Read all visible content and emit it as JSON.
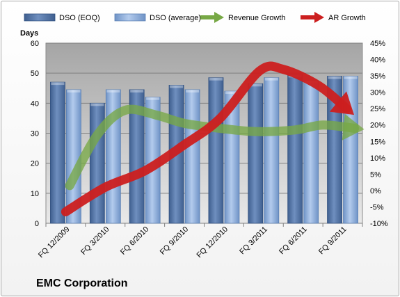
{
  "chart_data": {
    "type": "bar",
    "categories": [
      "FQ 12/2009",
      "FQ 3/2010",
      "FQ 6/2010",
      "FQ 9/2010",
      "FQ 12/2010",
      "FQ 3/2011",
      "FQ 6/2011",
      "FQ 9/2011"
    ],
    "ylabel": "Days",
    "ylim": [
      0,
      60
    ],
    "y_ticks": [
      "0",
      "10",
      "20",
      "30",
      "40",
      "50",
      "60"
    ],
    "y2lim": [
      -10,
      45
    ],
    "y2_ticks": [
      "-10%",
      "-5%",
      "0%",
      "5%",
      "10%",
      "15%",
      "20%",
      "25%",
      "30%",
      "35%",
      "40%",
      "45%"
    ],
    "legend_position": "top",
    "grid": true,
    "series": [
      {
        "name": "DSO (EOQ)",
        "kind": "bar",
        "axis": "left",
        "color": "#4f6f9f",
        "values": [
          47,
          40,
          44.5,
          46,
          48.5,
          46.5,
          49.5,
          49
        ]
      },
      {
        "name": "DSO (average)",
        "kind": "bar",
        "axis": "left",
        "color": "#8fb0dd",
        "values": [
          44.5,
          44.5,
          42,
          44.5,
          44,
          48.5,
          47.5,
          49
        ]
      },
      {
        "name": "Revenue Growth",
        "kind": "arrow-line",
        "axis": "right",
        "color": "#77a845",
        "x": [
          0.1,
          0.8,
          1.5,
          2.3,
          3.0,
          3.9,
          4.8,
          5.8,
          6.5,
          7.3
        ],
        "values": [
          1.5,
          17,
          24.5,
          23,
          20.5,
          19,
          18,
          18.5,
          20,
          19
        ]
      },
      {
        "name": "AR Growth",
        "kind": "arrow-line",
        "axis": "right",
        "color": "#cc1f1f",
        "x": [
          0,
          1.0,
          2.0,
          3.0,
          3.9,
          4.9,
          5.5,
          6.4,
          7.1
        ],
        "values": [
          -6.5,
          1,
          6,
          14,
          22,
          36.5,
          37,
          32,
          25
        ]
      }
    ]
  },
  "company_label": "EMC Corporation"
}
